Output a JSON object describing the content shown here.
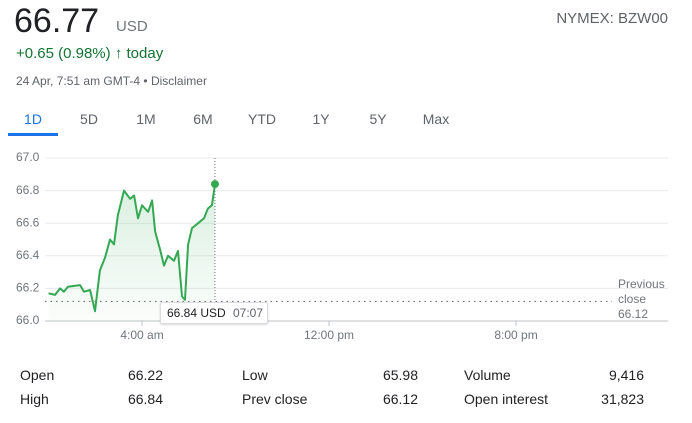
{
  "header": {
    "price": "66.77",
    "currency": "USD",
    "exchange": "NYMEX: BZW00",
    "change": "+0.65 (0.98%)",
    "change_suffix": "today",
    "timestamp": "24 Apr, 7:51 am GMT-4",
    "disclaimer": "Disclaimer"
  },
  "tabs": [
    "1D",
    "5D",
    "1M",
    "6M",
    "YTD",
    "1Y",
    "5Y",
    "Max"
  ],
  "chart_data": {
    "type": "line",
    "color": "#34a853",
    "x": [
      0.0,
      0.28,
      0.49,
      0.66,
      0.83,
      1.35,
      1.52,
      1.78,
      1.99,
      2.2,
      2.42,
      2.63,
      2.8,
      2.97,
      3.23,
      3.49,
      3.66,
      3.83,
      4.0,
      4.26,
      4.43,
      4.56,
      4.77,
      4.94,
      5.11,
      5.37,
      5.54,
      5.71,
      5.84,
      5.97,
      6.14,
      6.4,
      6.65,
      6.82,
      6.99,
      7.12
    ],
    "values": [
      66.17,
      66.16,
      66.2,
      66.18,
      66.21,
      66.22,
      66.18,
      66.19,
      66.06,
      66.31,
      66.39,
      66.5,
      66.47,
      66.65,
      66.8,
      66.75,
      66.77,
      66.63,
      66.71,
      66.67,
      66.74,
      66.55,
      66.44,
      66.34,
      66.4,
      66.37,
      66.43,
      66.15,
      66.13,
      66.47,
      66.57,
      66.6,
      66.63,
      66.69,
      66.71,
      66.84
    ],
    "xlim": [
      -0.15,
      26.5
    ],
    "ylim": [
      66.0,
      67.0
    ],
    "xticks": [
      {
        "value": 4,
        "label": "4:00 am"
      },
      {
        "value": 12,
        "label": "12:00 pm"
      },
      {
        "value": 20,
        "label": "8:00 pm"
      }
    ],
    "yticks": [
      {
        "value": 66.0,
        "label": "66.0"
      },
      66.2,
      66.4,
      66.6,
      66.8,
      {
        "value": 67.0,
        "label": "67.0"
      }
    ],
    "grid": true,
    "reference_line": {
      "label": "Previous close",
      "value": 66.12
    },
    "tooltip": {
      "value": "66.84 USD",
      "time": "07:07"
    }
  },
  "table": {
    "rows": [
      [
        "Open",
        "66.22",
        "Low",
        "65.98",
        "Volume",
        "9,416"
      ],
      [
        "High",
        "66.84",
        "Prev close",
        "66.12",
        "Open interest",
        "31,823"
      ]
    ]
  }
}
